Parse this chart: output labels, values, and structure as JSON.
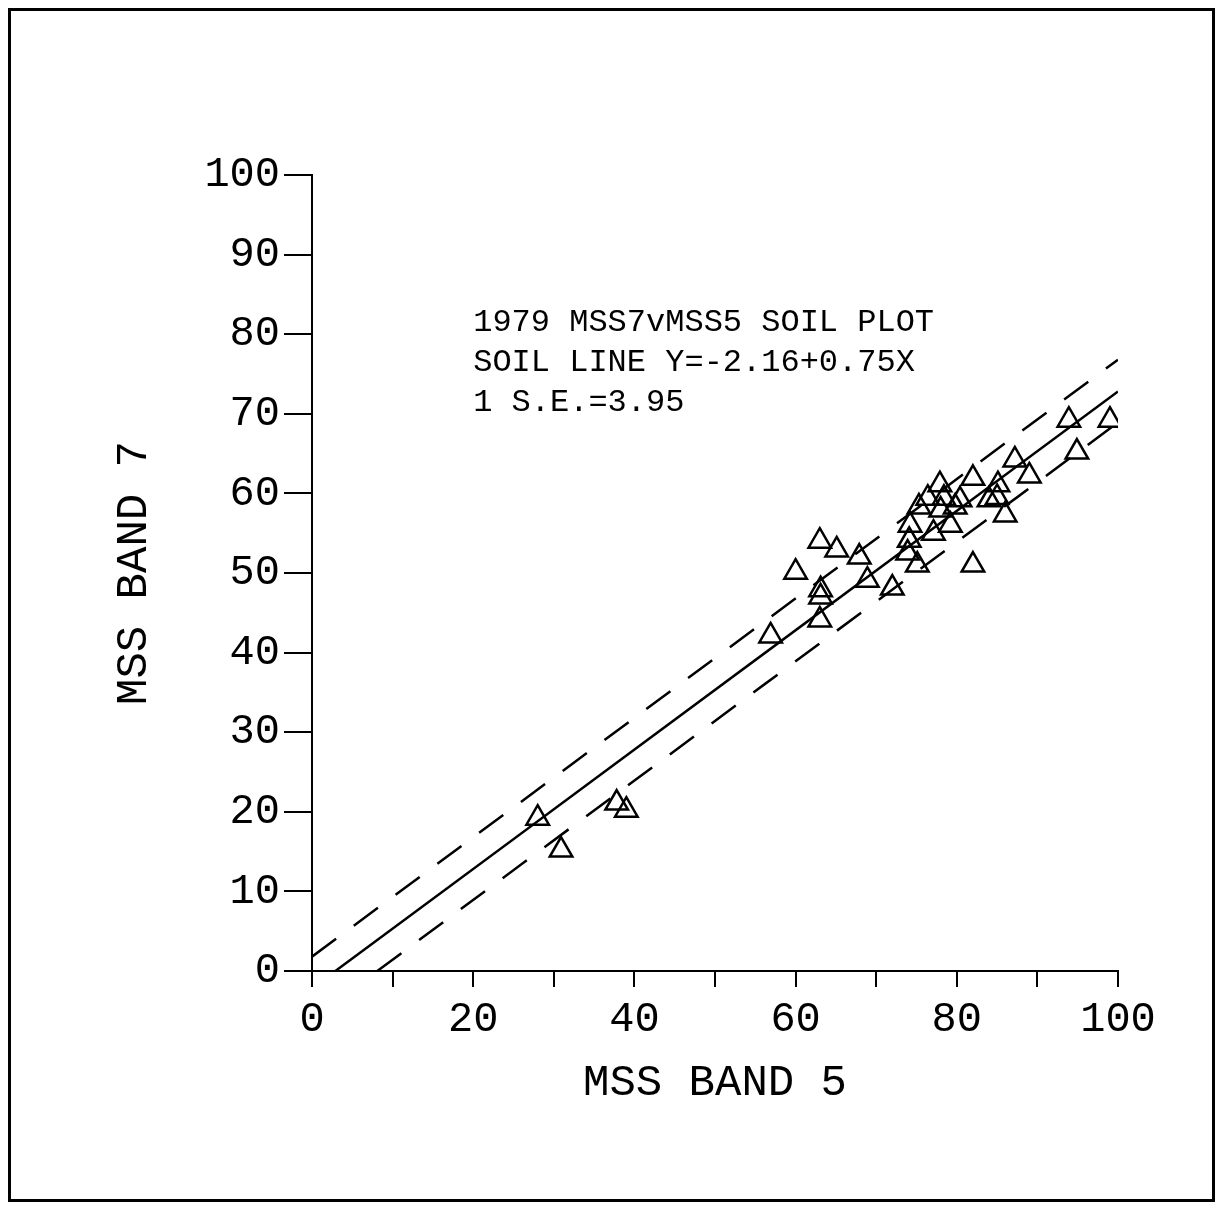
{
  "chart_data": {
    "type": "scatter",
    "xlabel": "MSS BAND 5",
    "ylabel": "MSS BAND 7",
    "annotations": [
      "1979 MSS7vMSS5 SOIL PLOT",
      "SOIL LINE Y=-2.16+0.75X",
      "1 S.E.=3.95"
    ],
    "xlim": [
      0,
      100
    ],
    "ylim": [
      0,
      100
    ],
    "xticks": [
      0,
      {
        "value": 10,
        "label": null
      },
      20,
      {
        "value": 30,
        "label": null
      },
      40,
      {
        "value": 50,
        "label": null
      },
      60,
      {
        "value": 70,
        "label": null
      },
      80,
      {
        "value": 90,
        "label": null
      },
      100
    ],
    "yticks": [
      0,
      10,
      20,
      30,
      40,
      50,
      60,
      70,
      80,
      90,
      100
    ],
    "grid": false,
    "legend": false,
    "marker": "triangle",
    "series": [
      {
        "type": "scatter",
        "color": "#000000",
        "x": [
          28.0,
          30.9,
          37.8,
          39.0,
          56.9,
          60.0,
          63.0,
          63.1,
          63.1,
          63.0,
          65.1,
          67.9,
          68.9,
          72.0,
          73.9,
          74.1,
          74.2,
          75.1,
          75.3,
          76.4,
          77.1,
          77.9,
          78.0,
          78.4,
          79.2,
          79.8,
          80.4,
          82.0,
          82.0,
          84.0,
          85.0,
          85.1,
          86.0,
          87.2,
          89.0,
          93.9,
          94.9,
          99.0
        ],
        "values": [
          19.2,
          15.2,
          21.1,
          20.2,
          42.1,
          50.1,
          54.0,
          47.9,
          47.0,
          44.1,
          52.9,
          52.0,
          49.1,
          48.1,
          52.5,
          54.1,
          56.0,
          51.0,
          58.3,
          59.4,
          55.0,
          61.1,
          57.9,
          59.4,
          56.0,
          58.3,
          59.2,
          51.0,
          61.9,
          59.2,
          59.5,
          61.1,
          57.3,
          64.2,
          62.2,
          69.2,
          65.2,
          69.2
        ]
      },
      {
        "type": "line",
        "color": "#000000",
        "marker": "none",
        "line_style": "solid",
        "x": [
          2.9,
          100
        ],
        "values": [
          0,
          72.8
        ]
      },
      {
        "type": "line",
        "color": "#000000",
        "marker": "none",
        "line_style": "dashed",
        "x": [
          0,
          100
        ],
        "values": [
          1.8,
          76.8
        ]
      },
      {
        "type": "line",
        "color": "#000000",
        "marker": "none",
        "line_style": "dashed",
        "x": [
          8.1,
          100
        ],
        "values": [
          0,
          68.9
        ]
      }
    ]
  }
}
